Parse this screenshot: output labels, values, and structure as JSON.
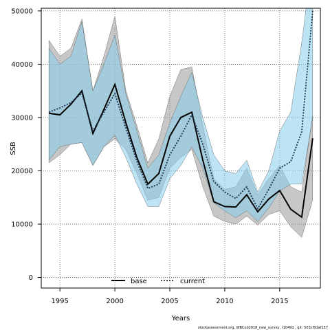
{
  "chart_data": {
    "type": "line",
    "xlabel": "Years",
    "ylabel": "SSB",
    "xlim": [
      1993.3,
      2018.7
    ],
    "ylim": [
      -2000,
      50500
    ],
    "grid": true,
    "legend_position": "bottom-center",
    "x_ticks": [
      1995,
      2000,
      2005,
      2010,
      2015
    ],
    "y_ticks": [
      0,
      10000,
      20000,
      30000,
      40000,
      50000
    ],
    "x": [
      1994,
      1995,
      1996,
      1997,
      1998,
      1999,
      2000,
      2001,
      2002,
      2003,
      2004,
      2005,
      2006,
      2007,
      2008,
      2009,
      2010,
      2011,
      2012,
      2013,
      2014,
      2015,
      2016,
      2017,
      2018
    ],
    "series": [
      {
        "name": "base",
        "color": "#000000",
        "band_color": "#999999",
        "line_style": "solid",
        "values": [
          30800,
          30500,
          32500,
          35000,
          27000,
          31500,
          36200,
          29000,
          22500,
          17500,
          19500,
          26500,
          30000,
          31000,
          22000,
          14200,
          13300,
          13200,
          15500,
          12300,
          14700,
          16300,
          12800,
          11300,
          26100
        ],
        "lower": [
          21500,
          23000,
          25000,
          25300,
          21000,
          24500,
          26000,
          24000,
          19500,
          14500,
          15000,
          20500,
          22500,
          24000,
          17000,
          11500,
          10500,
          10000,
          11500,
          9800,
          11800,
          12500,
          9500,
          7500,
          14500
        ],
        "upper": [
          44500,
          41500,
          43000,
          48500,
          35000,
          41500,
          49000,
          35000,
          28500,
          21500,
          26000,
          34000,
          39000,
          39500,
          28500,
          18500,
          16500,
          17000,
          20500,
          15500,
          18500,
          21000,
          17000,
          16000,
          30500
        ]
      },
      {
        "name": "current",
        "color": "#1a2f4a",
        "band_color": "#87ceeb",
        "line_style": "dotted",
        "values": [
          31000,
          31800,
          32800,
          34600,
          27500,
          31000,
          34500,
          28000,
          21800,
          16700,
          17500,
          23000,
          26500,
          30500,
          25000,
          18000,
          16000,
          14800,
          17000,
          12900,
          16500,
          20500,
          21700,
          27300,
          50000
        ],
        "lower": [
          22000,
          24500,
          25000,
          25300,
          21000,
          24500,
          26700,
          22500,
          17500,
          13300,
          13300,
          18500,
          21000,
          24500,
          20500,
          14000,
          12500,
          11200,
          12500,
          10500,
          13000,
          16200,
          17500,
          17500,
          30000
        ],
        "upper": [
          43000,
          40000,
          41500,
          48000,
          35000,
          40000,
          45500,
          34500,
          27500,
          20500,
          23000,
          29000,
          34000,
          38500,
          30000,
          23000,
          20000,
          19500,
          22000,
          16000,
          20000,
          27500,
          31000,
          44000,
          60000
        ]
      }
    ],
    "footnote": "stockassessment.org, WBCod2018_new_survey, r10491 , git: 503cf91af157"
  }
}
